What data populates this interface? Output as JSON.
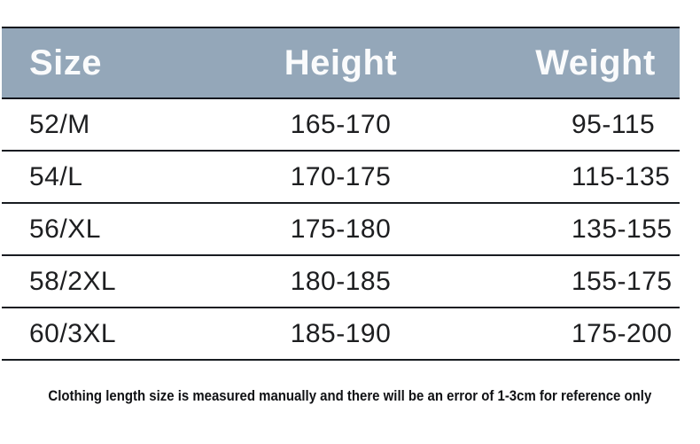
{
  "chart_data": {
    "type": "table",
    "columns": [
      "Size",
      "Height",
      "Weight"
    ],
    "rows": [
      [
        "52/M",
        "165-170",
        "95-115"
      ],
      [
        "54/L",
        "170-175",
        "115-135"
      ],
      [
        "56/XL",
        "175-180",
        "135-155"
      ],
      [
        "58/2XL",
        "180-185",
        "155-175"
      ],
      [
        "60/3XL",
        "185-190",
        "175-200"
      ]
    ],
    "note": "Clothing length size is measured manually and there will be an error of 1-3cm for reference only",
    "layout": {
      "header_alignment": "Size left, Height center, Weight center",
      "grid": "horizontal rules only, no vertical rules",
      "legend_position": "none"
    }
  },
  "colors": {
    "page-bg": "#ffffff",
    "header-bg": "#94a7b9",
    "header-text": "#fafbfc",
    "border-strong": "#10161d",
    "border-row": "#181c21",
    "body-text": "#1d1e20",
    "note-text": "#101114"
  }
}
